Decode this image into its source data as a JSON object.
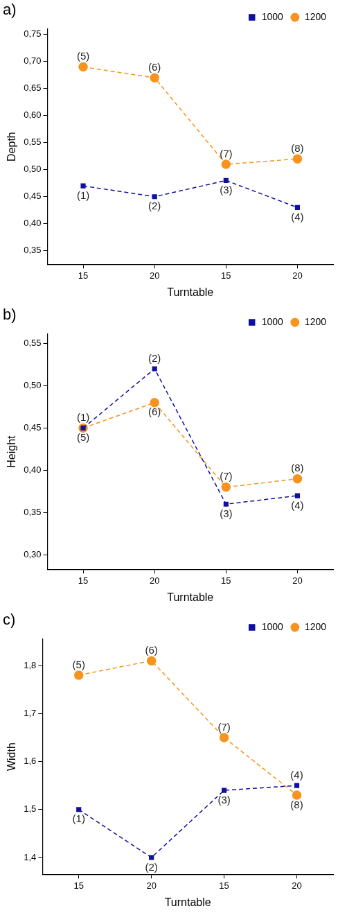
{
  "chart_data": [
    {
      "type": "line",
      "title": "a)",
      "xlabel": "Turntable",
      "ylabel": "Depth",
      "categories": [
        "15",
        "20",
        "15",
        "20"
      ],
      "line_style": "dashed",
      "legend": "top right",
      "grid": false,
      "ylim": [
        0.325,
        0.76
      ],
      "yticks": [
        {
          "value": 0.35,
          "label": "0,35"
        },
        {
          "value": 0.4,
          "label": "0,40"
        },
        {
          "value": 0.45,
          "label": "0,45"
        },
        {
          "value": 0.5,
          "label": "0,50"
        },
        {
          "value": 0.55,
          "label": "0,55"
        },
        {
          "value": 0.6,
          "label": "0,60"
        },
        {
          "value": 0.65,
          "label": "0,65"
        },
        {
          "value": 0.7,
          "label": "0,70"
        },
        {
          "value": 0.75,
          "label": "0,75"
        }
      ],
      "series": [
        {
          "name": "1000",
          "color": "#0f0fa0",
          "marker": "square",
          "values": [
            0.47,
            0.45,
            0.48,
            0.43
          ]
        },
        {
          "name": "1200",
          "color": "#f7931e",
          "marker": "circle",
          "values": [
            0.69,
            0.67,
            0.51,
            0.52
          ]
        }
      ],
      "annotations": [
        {
          "text": "(1)",
          "x": "15",
          "y": 0.47
        },
        {
          "text": "(2)",
          "x": "20",
          "y": 0.45
        },
        {
          "text": "(3)",
          "y": 0.48
        },
        {
          "text": "(4)",
          "y": 0.43
        },
        {
          "text": "(5)",
          "x": "15",
          "y": 0.69
        },
        {
          "text": "(6)",
          "x": "20",
          "y": 0.67
        },
        {
          "text": "(7)",
          "y": 0.51
        },
        {
          "text": "(8)",
          "y": 0.52
        }
      ]
    },
    {
      "type": "line",
      "title": "b)",
      "xlabel": "Turntable",
      "ylabel": "Height",
      "categories": [
        "15",
        "20",
        "15",
        "20"
      ],
      "line_style": "dashed",
      "legend": "top right",
      "grid": false,
      "ylim": [
        0.283,
        0.561
      ],
      "yticks": [
        {
          "value": 0.3,
          "label": "0,30"
        },
        {
          "value": 0.35,
          "label": "0,35"
        },
        {
          "value": 0.4,
          "label": "0,40"
        },
        {
          "value": 0.45,
          "label": "0,45"
        },
        {
          "value": 0.5,
          "label": "0,50"
        },
        {
          "value": 0.55,
          "label": "0,55"
        }
      ],
      "series": [
        {
          "name": "1000",
          "color": "#0f0fa0",
          "marker": "square",
          "values": [
            0.45,
            0.52,
            0.36,
            0.37
          ]
        },
        {
          "name": "1200",
          "color": "#f7931e",
          "marker": "circle",
          "values": [
            0.45,
            0.48,
            0.38,
            0.39
          ]
        }
      ],
      "annotations": [
        {
          "text": "(1)",
          "x": "15",
          "y": 0.45
        },
        {
          "text": "(2)",
          "x": "20",
          "y": 0.52
        },
        {
          "text": "(3)",
          "y": 0.36
        },
        {
          "text": "(4)",
          "y": 0.37
        },
        {
          "text": "(5)",
          "x": "15",
          "y": 0.45
        },
        {
          "text": "(6)",
          "x": "20",
          "y": 0.48
        },
        {
          "text": "(7)",
          "y": 0.38
        },
        {
          "text": "(8)",
          "y": 0.39
        }
      ]
    },
    {
      "type": "line",
      "title": "c)",
      "xlabel": "Turntable",
      "ylabel": "Width",
      "categories": [
        "15",
        "20",
        "15",
        "20"
      ],
      "line_style": "dashed",
      "legend": "top right",
      "grid": false,
      "ylim": [
        1.365,
        1.855
      ],
      "yticks": [
        {
          "value": 1.4,
          "label": "1,4"
        },
        {
          "value": 1.5,
          "label": "1,5"
        },
        {
          "value": 1.6,
          "label": "1,6"
        },
        {
          "value": 1.7,
          "label": "1,7"
        },
        {
          "value": 1.8,
          "label": "1,8"
        }
      ],
      "series": [
        {
          "name": "1000",
          "color": "#0f0fa0",
          "marker": "square",
          "values": [
            1.5,
            1.4,
            1.54,
            1.55
          ]
        },
        {
          "name": "1200",
          "color": "#f7931e",
          "marker": "circle",
          "values": [
            1.78,
            1.81,
            1.65,
            1.53
          ]
        }
      ],
      "annotations": [
        {
          "text": "(1)",
          "x": "15",
          "y": 1.5
        },
        {
          "text": "(2)",
          "x": "20",
          "y": 1.4
        },
        {
          "text": "(3)",
          "y": 1.54
        },
        {
          "text": "(4)",
          "y": 1.55
        },
        {
          "text": "(5)",
          "x": "15",
          "y": 1.78
        },
        {
          "text": "(6)",
          "x": "20",
          "y": 1.81
        },
        {
          "text": "(7)",
          "y": 1.65
        },
        {
          "text": "(8)",
          "y": 1.53
        }
      ]
    }
  ]
}
